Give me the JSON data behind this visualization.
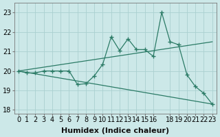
{
  "x_data": [
    0,
    1,
    2,
    3,
    4,
    5,
    6,
    7,
    8,
    9,
    10,
    11,
    12,
    13,
    14,
    15,
    16,
    17,
    18,
    19,
    20,
    21,
    22,
    23
  ],
  "y_main": [
    20.0,
    19.9,
    19.9,
    20.0,
    20.0,
    20.0,
    20.0,
    19.3,
    19.35,
    19.75,
    20.35,
    21.75,
    21.05,
    21.65,
    21.1,
    21.1,
    20.75,
    23.0,
    21.5,
    21.35,
    19.8,
    19.2,
    18.85,
    18.3
  ],
  "y_trend_up_start": 20.0,
  "y_trend_up_end": 21.5,
  "y_trend_down_start": 20.0,
  "y_trend_down_end": 18.3,
  "line_color": "#2a7a65",
  "bg_color": "#cce8e8",
  "grid_color": "#aad0d0",
  "xlabel": "Humidex (Indice chaleur)",
  "ylabel_ticks": [
    18,
    19,
    20,
    21,
    22,
    23
  ],
  "xlim": [
    -0.5,
    23.5
  ],
  "ylim": [
    17.8,
    23.5
  ],
  "xticks": [
    0,
    1,
    2,
    3,
    4,
    5,
    6,
    7,
    8,
    9,
    10,
    11,
    12,
    13,
    14,
    15,
    16,
    18,
    19,
    20,
    21,
    22,
    23
  ],
  "xlabel_fontsize": 8,
  "tick_fontsize": 7
}
